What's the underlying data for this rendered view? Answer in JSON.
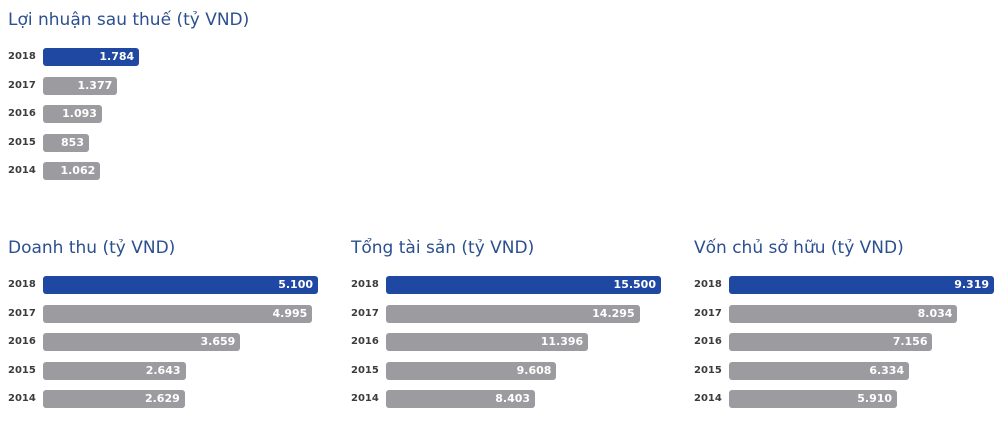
{
  "chart_data": [
    {
      "type": "bar",
      "orientation": "horizontal",
      "title": "Lợi nhuận sau thuế (tỷ VND)",
      "categories": [
        "2018",
        "2017",
        "2016",
        "2015",
        "2014"
      ],
      "values": [
        1784,
        1377,
        1093,
        853,
        1062
      ],
      "value_labels": [
        "1.784",
        "1.377",
        "1.093",
        "853",
        "1.062"
      ],
      "xlim": [
        0,
        5100
      ],
      "highlight_color": "#1f48a2",
      "bar_color": "#9c9ca0"
    },
    {
      "type": "bar",
      "orientation": "horizontal",
      "title": "Doanh thu (tỷ VND)",
      "categories": [
        "2018",
        "2017",
        "2016",
        "2015",
        "2014"
      ],
      "values": [
        5100,
        4995,
        3659,
        2643,
        2629
      ],
      "value_labels": [
        "5.100",
        "4.995",
        "3.659",
        "2.643",
        "2.629"
      ],
      "xlim": [
        0,
        5100
      ],
      "highlight_color": "#1f48a2",
      "bar_color": "#9c9ca0"
    },
    {
      "type": "bar",
      "orientation": "horizontal",
      "title": "Tổng tài sản (tỷ VND)",
      "categories": [
        "2018",
        "2017",
        "2016",
        "2015",
        "2014"
      ],
      "values": [
        15500,
        14295,
        11396,
        9608,
        8403
      ],
      "value_labels": [
        "15.500",
        "14.295",
        "11.396",
        "9.608",
        "8.403"
      ],
      "xlim": [
        0,
        15500
      ],
      "highlight_color": "#1f48a2",
      "bar_color": "#9c9ca0"
    },
    {
      "type": "bar",
      "orientation": "horizontal",
      "title": "Vốn chủ sở hữu (tỷ VND)",
      "categories": [
        "2018",
        "2017",
        "2016",
        "2015",
        "2014"
      ],
      "values": [
        9319,
        8034,
        7156,
        6334,
        5910
      ],
      "value_labels": [
        "9.319",
        "8.034",
        "7.156",
        "6.334",
        "5.910"
      ],
      "xlim": [
        0,
        9319
      ],
      "highlight_color": "#1f48a2",
      "bar_color": "#9c9ca0"
    }
  ]
}
